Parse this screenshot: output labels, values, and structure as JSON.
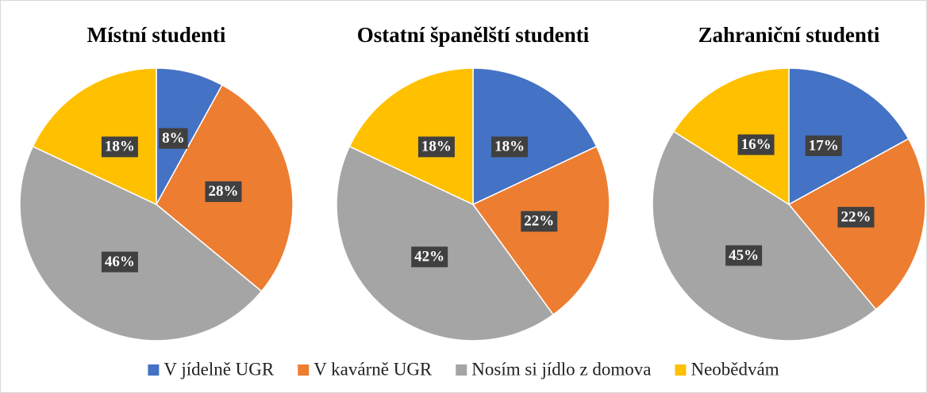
{
  "chart_data": [
    {
      "type": "pie",
      "title": "Místní studenti",
      "categories": [
        "V jídelně UGR",
        "V kavárně UGR",
        "Nosím si jídlo z domova",
        "Neobědvám"
      ],
      "values": [
        8,
        28,
        46,
        18
      ],
      "value_labels": [
        "8%",
        "28%",
        "46%",
        "18%"
      ],
      "colors": [
        "#4472c4",
        "#ed7d31",
        "#a5a5a5",
        "#ffc000"
      ]
    },
    {
      "type": "pie",
      "title": "Ostatní španělští studenti",
      "categories": [
        "V jídelně UGR",
        "V kavárně UGR",
        "Nosím si jídlo z domova",
        "Neobědvám"
      ],
      "values": [
        18,
        22,
        42,
        18
      ],
      "value_labels": [
        "18%",
        "22%",
        "42%",
        "18%"
      ],
      "colors": [
        "#4472c4",
        "#ed7d31",
        "#a5a5a5",
        "#ffc000"
      ]
    },
    {
      "type": "pie",
      "title": "Zahraniční studenti",
      "categories": [
        "V jídelně UGR",
        "V kavárně UGR",
        "Nosím si jídlo z domova",
        "Neobědvám"
      ],
      "values": [
        17,
        22,
        45,
        16
      ],
      "value_labels": [
        "17%",
        "22%",
        "45%",
        "16%"
      ],
      "colors": [
        "#4472c4",
        "#ed7d31",
        "#a5a5a5",
        "#ffc000"
      ]
    }
  ]
}
